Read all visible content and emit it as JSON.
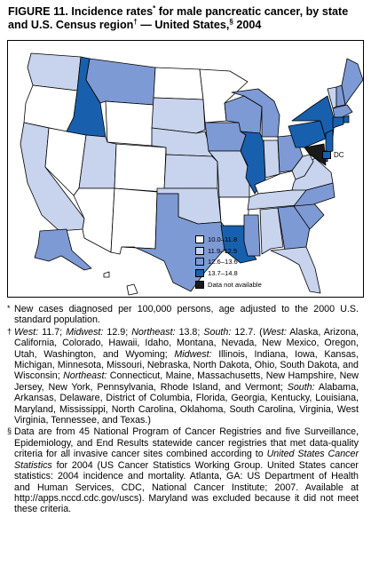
{
  "title": {
    "part1": "FIGURE 11. Incidence rates",
    "mark1": "*",
    "part2": " for male pancreatic cancer, by state and U.S. Census region",
    "mark2": "†",
    "part3": " — United States,",
    "mark3": "§",
    "part4": " 2004"
  },
  "colors": {
    "c1": "#ffffff",
    "c2": "#c8d3ed",
    "c3": "#7e9ad4",
    "c4": "#1860ad",
    "na": "#1a1a1a"
  },
  "legend": {
    "items": [
      {
        "label": "10.0–11.8",
        "key": "c1"
      },
      {
        "label": "11.9–12.5",
        "key": "c2"
      },
      {
        "label": "12.6–13.6",
        "key": "c3"
      },
      {
        "label": "13.7–14.8",
        "key": "c4"
      },
      {
        "label": "Data not available",
        "key": "na"
      }
    ]
  },
  "dc_label": "DC",
  "states": {
    "WA": "c2",
    "OR": "c1",
    "CA": "c2",
    "NV": "c1",
    "ID": "c4",
    "MT": "c3",
    "WY": "c1",
    "UT": "c2",
    "AZ": "c1",
    "CO": "c1",
    "NM": "c1",
    "ND": "c1",
    "SD": "c2",
    "NE": "c2",
    "KS": "c2",
    "OK": "c2",
    "TX": "c3",
    "MN": "c1",
    "IA": "c3",
    "MO": "c2",
    "AR": "c1",
    "LA": "c4",
    "WI": "c3",
    "IL": "c4",
    "MS": "c3",
    "MI": "c3",
    "IN": "c2",
    "OH": "c3",
    "KY": "c1",
    "TN": "c2",
    "AL": "c2",
    "GA": "c3",
    "FL": "c2",
    "SC": "c3",
    "NC": "c3",
    "VA": "c2",
    "WV": "c2",
    "PA": "c4",
    "NY": "c4",
    "VT": "c2",
    "NH": "c3",
    "ME": "c3",
    "MA": "c3",
    "RI": "c4",
    "CT": "c4",
    "NJ": "c4",
    "DE": "c4",
    "MD": "na",
    "AK": "c3",
    "HI": "c1"
  },
  "notes": {
    "n1_mark": "*",
    "n1": "New cases diagnosed per 100,000 persons, age adjusted to the 2000 U.S. standard population.",
    "n2_mark": "†",
    "n2_west_label": "West:",
    "n2_west": " 11.7; ",
    "n2_mw_label": "Midwest:",
    "n2_mw": " 12.9; ",
    "n2_ne_label": "Northeast:",
    "n2_ne": " 13.8; ",
    "n2_s_label": "South:",
    "n2_s": " 12.7. (",
    "n2_w2_label": "West:",
    "n2_w2": " Alaska, Arizona, California, Colorado, Hawaii, Idaho, Montana, Nevada, New Mexico, Oregon, Utah, Washington, and Wyoming; ",
    "n2_mw2_label": "Midwest:",
    "n2_mw2": " Illinois, Indiana, Iowa, Kansas, Michigan, Minnesota, Missouri, Nebraska, North Dakota, Ohio, South Dakota, and Wisconsin; ",
    "n2_ne2_label": "Northeast:",
    "n2_ne2": " Connecticut, Maine, Massachusetts, New Hampshire, New Jersey, New York, Pennsylvania, Rhode Island, and Vermont; ",
    "n2_s2_label": "South:",
    "n2_s2": " Alabama, Arkansas, Delaware, District of Columbia, Florida, Georgia, Kentucky, Louisiana, Maryland, Mississippi, North Carolina, Oklahoma, South Carolina, Virginia, West Virginia, Tennessee, and Texas.)",
    "n3_mark": "§",
    "n3_a": "Data are from 45 National Program of Cancer Registries and five Surveillance, Epidemiology, and End Results statewide cancer registries that met data-quality criteria for all invasive cancer sites combined according to ",
    "n3_it": "United States Cancer Statistics",
    "n3_b": " for 2004 (US Cancer Statistics Working Group. United States cancer statistics: 2004 incidence and mortality. Atlanta, GA: US Department of Health and Human Services, CDC, National Cancer Institute; 2007. Available at http://apps.nccd.cdc.gov/uscs). Maryland was excluded because it did not meet these criteria."
  }
}
